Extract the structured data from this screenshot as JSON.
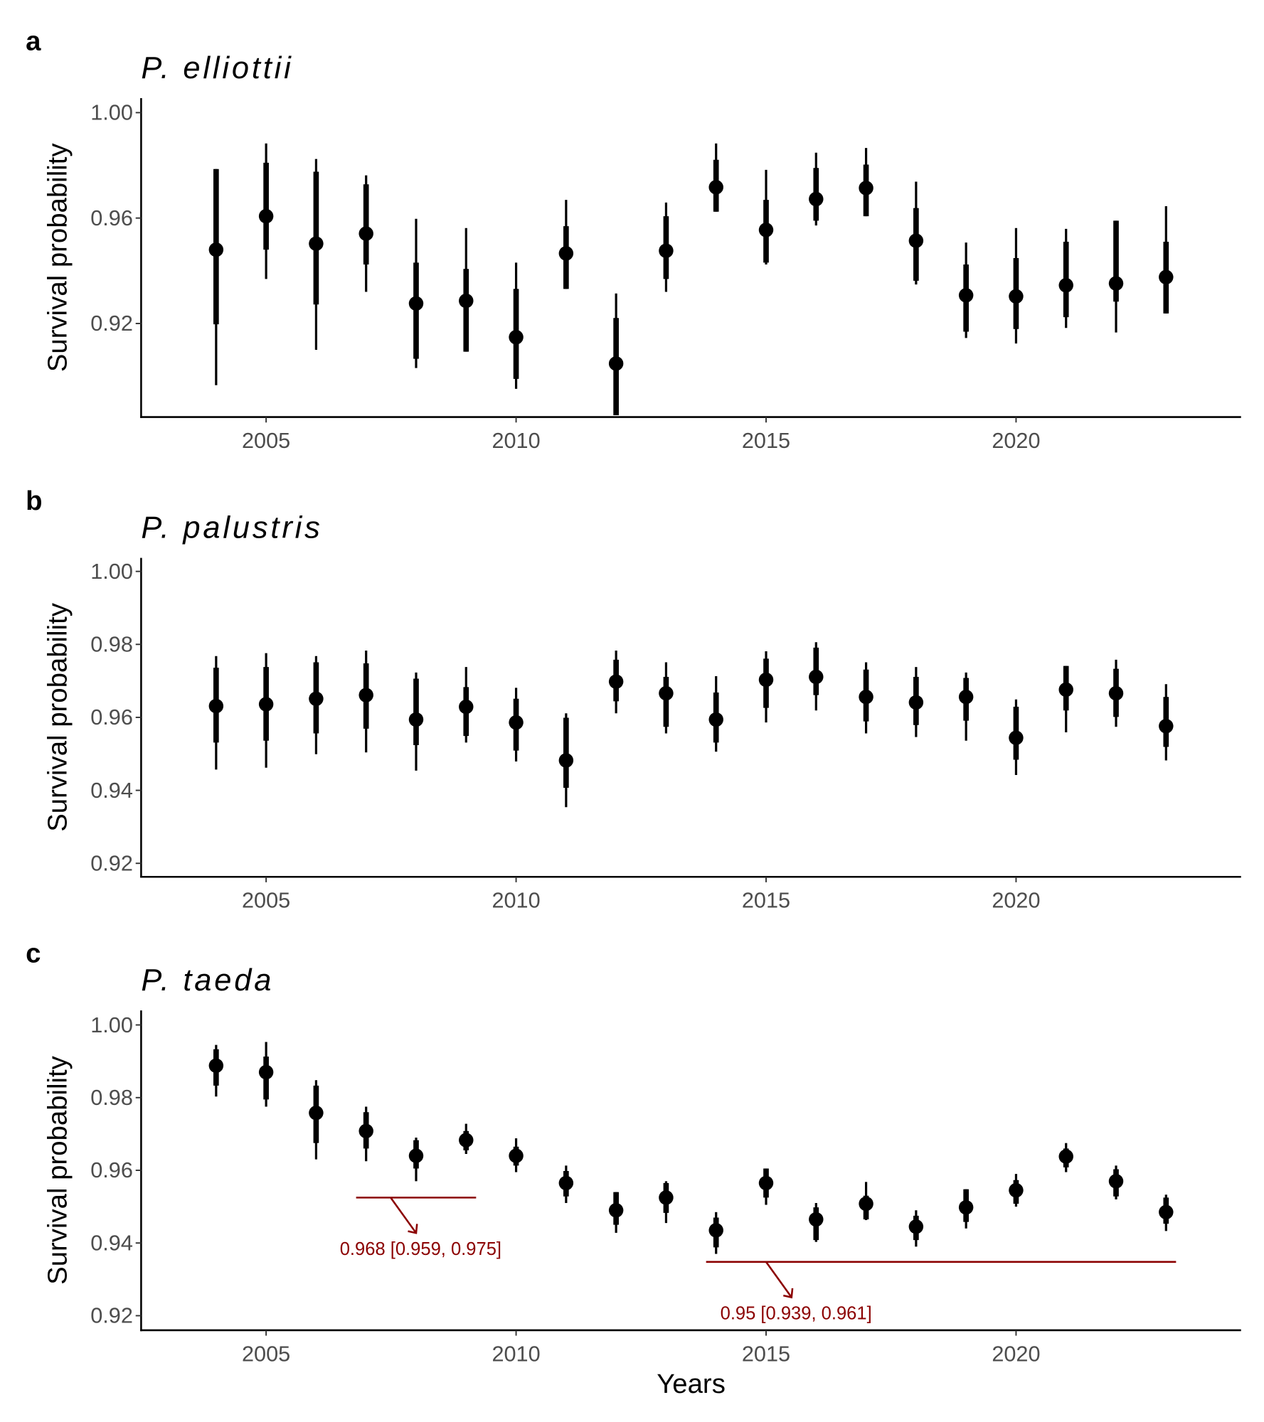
{
  "chart_data": [
    {
      "type": "pointrange",
      "panel_label": "a",
      "title": "P. elliottii",
      "ylabel": "Survival probability",
      "xlabel": "",
      "xlim": [
        2002.5,
        2024.5
      ],
      "ylim": [
        0.8845,
        1.0055
      ],
      "xticks": [
        2005,
        2010,
        2015,
        2020
      ],
      "yticks": [
        "0.92",
        "0.96",
        "1.00"
      ],
      "grid": false,
      "columns": [
        "year",
        "median",
        "inner_lo",
        "inner_hi",
        "outer_lo",
        "outer_hi"
      ],
      "points": [
        [
          2004,
          0.948,
          0.9197,
          0.9786,
          0.8966,
          0.9786
        ],
        [
          2005,
          0.9607,
          0.948,
          0.981,
          0.9369,
          0.9883
        ],
        [
          2006,
          0.9503,
          0.9272,
          0.9776,
          0.91,
          0.9824
        ],
        [
          2007,
          0.9541,
          0.9424,
          0.9728,
          0.932,
          0.9762
        ],
        [
          2008,
          0.9276,
          0.9066,
          0.9431,
          0.9031,
          0.9597
        ],
        [
          2009,
          0.9286,
          0.9093,
          0.9407,
          0.9093,
          0.9562
        ],
        [
          2010,
          0.9148,
          0.899,
          0.9331,
          0.8952,
          0.9431
        ],
        [
          2011,
          0.9466,
          0.9331,
          0.9569,
          0.9331,
          0.9669
        ],
        [
          2012,
          0.9048,
          0.8852,
          0.9221,
          0.8852,
          0.9314
        ],
        [
          2013,
          0.9476,
          0.9369,
          0.9607,
          0.932,
          0.9659
        ],
        [
          2014,
          0.9717,
          0.9624,
          0.9821,
          0.9624,
          0.9883
        ],
        [
          2015,
          0.9555,
          0.9431,
          0.9669,
          0.9424,
          0.9783
        ],
        [
          2016,
          0.9672,
          0.959,
          0.979,
          0.9572,
          0.9848
        ],
        [
          2017,
          0.9714,
          0.9607,
          0.9803,
          0.9607,
          0.9866
        ],
        [
          2018,
          0.9514,
          0.9362,
          0.9638,
          0.9348,
          0.9738
        ],
        [
          2019,
          0.9307,
          0.9169,
          0.9424,
          0.9145,
          0.9507
        ],
        [
          2020,
          0.9303,
          0.9179,
          0.9448,
          0.9124,
          0.9562
        ],
        [
          2021,
          0.9345,
          0.9224,
          0.951,
          0.9183,
          0.9559
        ],
        [
          2022,
          0.9352,
          0.9283,
          0.959,
          0.9166,
          0.959
        ],
        [
          2023,
          0.9376,
          0.9238,
          0.951,
          0.9238,
          0.9645
        ]
      ],
      "annotations": []
    },
    {
      "type": "pointrange",
      "panel_label": "b",
      "title": "P. palustris",
      "ylabel": "Survival probability",
      "xlabel": "",
      "xlim": [
        2002.5,
        2024.5
      ],
      "ylim": [
        0.9163,
        1.0037
      ],
      "xticks": [
        2005,
        2010,
        2015,
        2020
      ],
      "yticks": [
        "0.92",
        "0.94",
        "0.96",
        "0.98",
        "1.00"
      ],
      "grid": false,
      "columns": [
        "year",
        "median",
        "inner_lo",
        "inner_hi",
        "outer_lo",
        "outer_hi"
      ],
      "points": [
        [
          2004,
          0.9631,
          0.9531,
          0.9736,
          0.9457,
          0.9768
        ],
        [
          2005,
          0.9636,
          0.9536,
          0.9738,
          0.9462,
          0.9776
        ],
        [
          2006,
          0.9651,
          0.9556,
          0.9751,
          0.9499,
          0.9768
        ],
        [
          2007,
          0.9661,
          0.9569,
          0.9748,
          0.9504,
          0.9783
        ],
        [
          2008,
          0.9594,
          0.9524,
          0.9706,
          0.9454,
          0.9723
        ],
        [
          2009,
          0.9629,
          0.9549,
          0.9683,
          0.9531,
          0.9738
        ],
        [
          2010,
          0.9586,
          0.9509,
          0.9651,
          0.9479,
          0.9681
        ],
        [
          2011,
          0.9482,
          0.9407,
          0.9599,
          0.9354,
          0.9611
        ],
        [
          2012,
          0.9698,
          0.9644,
          0.9758,
          0.9611,
          0.9783
        ],
        [
          2013,
          0.9666,
          0.9574,
          0.9711,
          0.9556,
          0.9751
        ],
        [
          2014,
          0.9594,
          0.9531,
          0.9668,
          0.9506,
          0.9713
        ],
        [
          2015,
          0.9703,
          0.9626,
          0.9761,
          0.9586,
          0.9781
        ],
        [
          2016,
          0.9711,
          0.9661,
          0.9791,
          0.9619,
          0.9806
        ],
        [
          2017,
          0.9656,
          0.9589,
          0.9731,
          0.9556,
          0.9751
        ],
        [
          2018,
          0.9641,
          0.9579,
          0.9711,
          0.9546,
          0.9738
        ],
        [
          2019,
          0.9656,
          0.9591,
          0.9708,
          0.9536,
          0.9723
        ],
        [
          2020,
          0.9544,
          0.9484,
          0.9629,
          0.9442,
          0.9649
        ],
        [
          2021,
          0.9676,
          0.9619,
          0.9741,
          0.9559,
          0.9741
        ],
        [
          2022,
          0.9666,
          0.9601,
          0.9733,
          0.9574,
          0.9758
        ],
        [
          2023,
          0.9576,
          0.9519,
          0.9656,
          0.9482,
          0.9691
        ]
      ],
      "annotations": []
    },
    {
      "type": "pointrange",
      "panel_label": "c",
      "title": "P. taeda",
      "ylabel": "Survival probability",
      "xlabel": "Years",
      "xlim": [
        2002.5,
        2024.5
      ],
      "ylim": [
        0.916,
        1.004
      ],
      "xticks": [
        2005,
        2010,
        2015,
        2020
      ],
      "yticks": [
        "0.92",
        "0.94",
        "0.96",
        "0.98",
        "1.00"
      ],
      "grid": false,
      "columns": [
        "year",
        "median",
        "inner_lo",
        "inner_hi",
        "outer_lo",
        "outer_hi"
      ],
      "points": [
        [
          2004,
          0.9888,
          0.9833,
          0.9933,
          0.9803,
          0.9945
        ],
        [
          2005,
          0.987,
          0.9795,
          0.9913,
          0.9775,
          0.9953
        ],
        [
          2006,
          0.9758,
          0.9675,
          0.9833,
          0.963,
          0.9848
        ],
        [
          2007,
          0.9708,
          0.966,
          0.976,
          0.9625,
          0.9775
        ],
        [
          2008,
          0.964,
          0.9605,
          0.9683,
          0.957,
          0.969
        ],
        [
          2009,
          0.9683,
          0.9655,
          0.9708,
          0.9645,
          0.9728
        ],
        [
          2010,
          0.964,
          0.9613,
          0.9665,
          0.9595,
          0.9688
        ],
        [
          2011,
          0.9565,
          0.9528,
          0.9598,
          0.951,
          0.9613
        ],
        [
          2012,
          0.949,
          0.945,
          0.954,
          0.9428,
          0.954
        ],
        [
          2013,
          0.9525,
          0.9483,
          0.9565,
          0.9455,
          0.957
        ],
        [
          2014,
          0.9435,
          0.9388,
          0.947,
          0.937,
          0.9485
        ],
        [
          2015,
          0.9565,
          0.9525,
          0.9605,
          0.9505,
          0.9605
        ],
        [
          2016,
          0.9465,
          0.9408,
          0.9498,
          0.9403,
          0.951
        ],
        [
          2017,
          0.9508,
          0.9465,
          0.953,
          0.9463,
          0.9568
        ],
        [
          2018,
          0.9445,
          0.9408,
          0.9475,
          0.939,
          0.949
        ],
        [
          2019,
          0.9498,
          0.9458,
          0.9548,
          0.944,
          0.9548
        ],
        [
          2020,
          0.9545,
          0.9508,
          0.9573,
          0.95,
          0.959
        ],
        [
          2021,
          0.9638,
          0.9608,
          0.966,
          0.9595,
          0.9675
        ],
        [
          2022,
          0.957,
          0.9528,
          0.9603,
          0.952,
          0.9613
        ],
        [
          2023,
          0.9485,
          0.9453,
          0.9525,
          0.9433,
          0.9533
        ]
      ],
      "annotations": [
        {
          "x_from": 2006.8,
          "x_to": 2009.2,
          "y": 0.9525,
          "text": "0.968 [0.959, 0.975]",
          "color": "#8b0000"
        },
        {
          "x_from": 2013.8,
          "x_to": 2023.2,
          "y": 0.9348,
          "text": "0.95 [0.939, 0.961]",
          "color": "#8b0000"
        }
      ]
    }
  ]
}
